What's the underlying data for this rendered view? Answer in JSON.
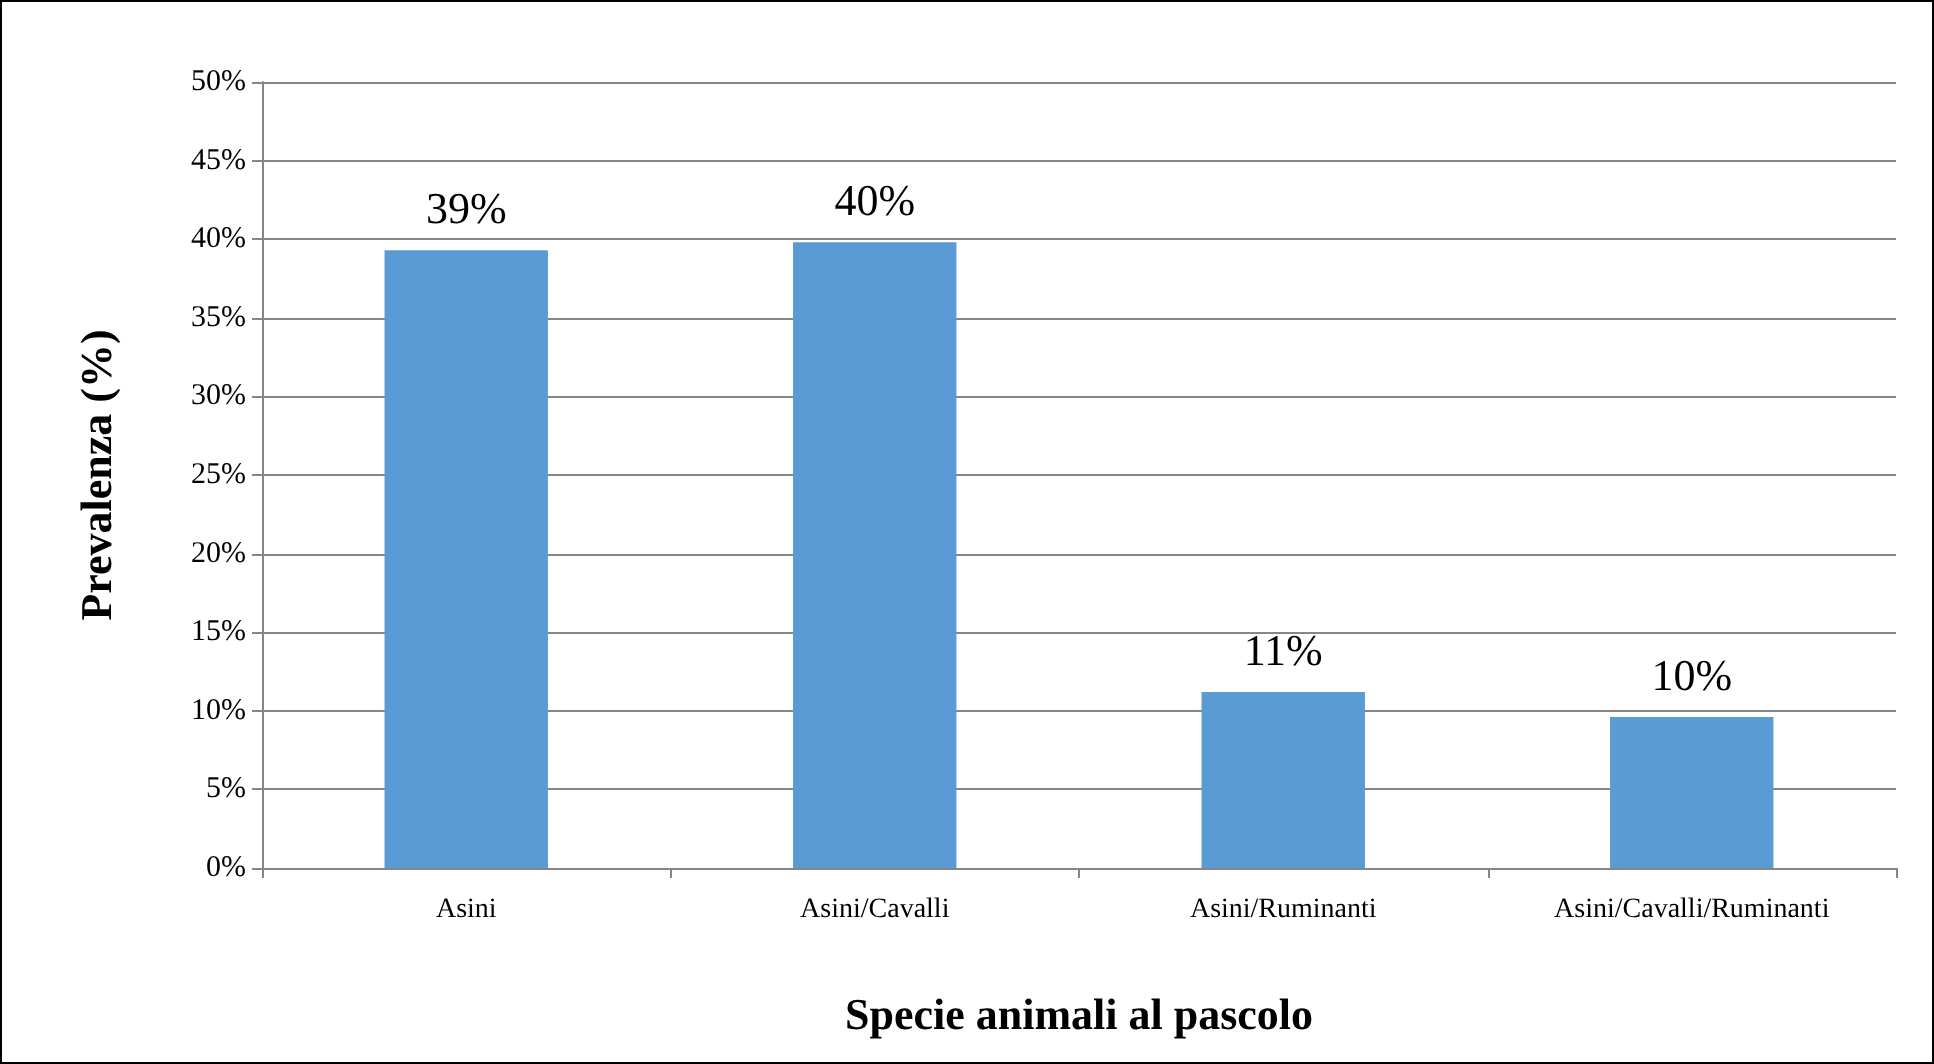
{
  "chart_data": {
    "type": "bar",
    "xlabel": "Specie animali al pascolo",
    "ylabel": "Prevalenza (%)",
    "categories": [
      "Asini",
      "Asini/Cavalli",
      "Asini/Ruminanti",
      "Asini/Cavalli/Ruminanti"
    ],
    "values": [
      39.3,
      39.8,
      11.2,
      9.6
    ],
    "value_labels": [
      "39%",
      "40%",
      "11%",
      "10%"
    ],
    "color": "#5b9bd5",
    "ylim": [
      0,
      50
    ],
    "yticks": [
      {
        "value": 0,
        "label": "0%"
      },
      {
        "value": 5,
        "label": "5%"
      },
      {
        "value": 10,
        "label": "10%"
      },
      {
        "value": 15,
        "label": "15%"
      },
      {
        "value": 20,
        "label": "20%"
      },
      {
        "value": 25,
        "label": "25%"
      },
      {
        "value": 30,
        "label": "30%"
      },
      {
        "value": 35,
        "label": "35%"
      },
      {
        "value": 40,
        "label": "40%"
      },
      {
        "value": 45,
        "label": "45%"
      },
      {
        "value": 50,
        "label": "50%"
      }
    ],
    "grid": "y"
  }
}
